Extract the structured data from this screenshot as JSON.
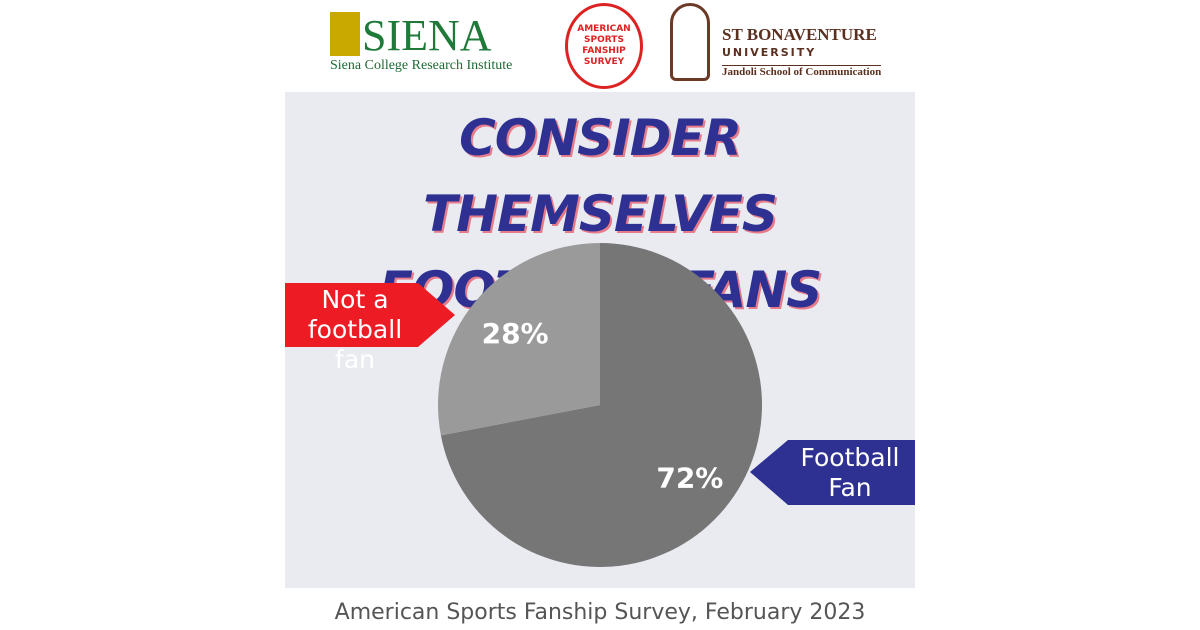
{
  "logos": {
    "siena_name": "SIENA",
    "siena_subtitle": "Siena College Research Institute",
    "survey_badge": "AMERICAN SPORTS FANSHIP SURVEY",
    "bonaventure_name": "ST BONAVENTURE",
    "bonaventure_university": "UNIVERSITY",
    "bonaventure_school": "Jandoli School of Communication"
  },
  "chart_data": {
    "type": "pie",
    "title": "CONSIDER THEMSELVES FOOTBALL FANS",
    "categories": [
      "Football Fan",
      "Not a football fan"
    ],
    "values": [
      72,
      28
    ],
    "value_labels": [
      "72%",
      "28%"
    ],
    "colors": [
      "#767676",
      "#9a9a9a"
    ]
  },
  "footer": "American Sports Fanship Survey, February 2023"
}
